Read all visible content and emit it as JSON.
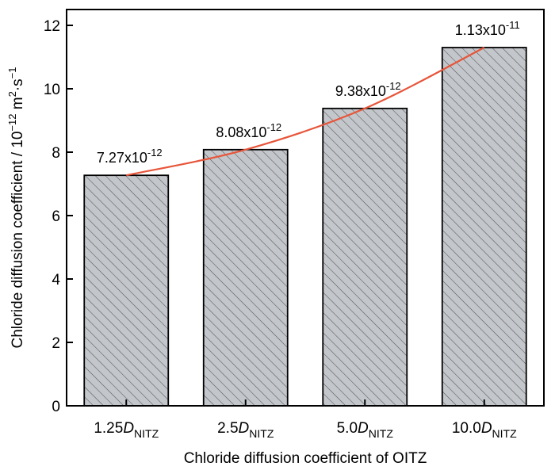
{
  "chart_data": {
    "type": "bar",
    "categories": [
      "1.25D_NITZ",
      "2.5D_NITZ",
      "5.0D_NITZ",
      "10.0D_NITZ"
    ],
    "category_labels": [
      {
        "prefix": "1.25",
        "symbol": "D",
        "subscript": "NITZ"
      },
      {
        "prefix": "2.5",
        "symbol": "D",
        "subscript": "NITZ"
      },
      {
        "prefix": "5.0",
        "symbol": "D",
        "subscript": "NITZ"
      },
      {
        "prefix": "10.0",
        "symbol": "D",
        "subscript": "NITZ"
      }
    ],
    "values": [
      7.27,
      8.08,
      9.38,
      11.3
    ],
    "data_labels": [
      {
        "mantissa": "7.27x10",
        "exponent": "-12"
      },
      {
        "mantissa": "8.08x10",
        "exponent": "-12"
      },
      {
        "mantissa": "9.38x10",
        "exponent": "-12"
      },
      {
        "mantissa": "1.13x10",
        "exponent": "-11"
      }
    ],
    "xlabel": "Chloride diffusion coefficient  of OITZ",
    "ylabel": {
      "text": "Chloride diffusion coefficient  / 10",
      "exp1": "−12",
      "unit1": " m",
      "exp2": "2",
      "unit2": "·s",
      "exp3": "−1"
    },
    "ylim": [
      0,
      12.5
    ],
    "yticks": [
      0,
      2,
      4,
      6,
      8,
      10,
      12
    ],
    "grid": false,
    "bar_fill": "#c3c6cb",
    "bar_hatch": "#555555",
    "trend_color": "#e8553a"
  }
}
